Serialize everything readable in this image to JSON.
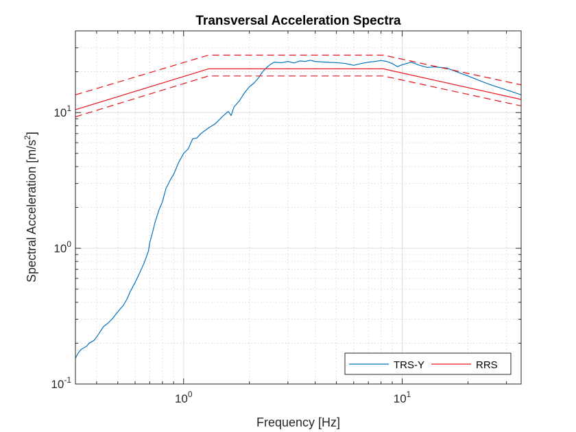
{
  "chart_data": {
    "type": "line",
    "title": "Transversal Acceleration Spectra",
    "xlabel": "Frequency [Hz]",
    "ylabel": "Spectral Acceleration [m/s",
    "ylabel_sup": "2",
    "ylabel_end": "]",
    "x_scale": "log",
    "y_scale": "log",
    "xlim": [
      0.32,
      35
    ],
    "ylim": [
      0.1,
      40
    ],
    "grid": "on",
    "minor_grid": "on",
    "x_ticks": [
      {
        "value": 1,
        "base": "10",
        "exp": "0"
      },
      {
        "value": 10,
        "base": "10",
        "exp": "1"
      }
    ],
    "y_ticks": [
      {
        "value": 0.1,
        "base": "10",
        "exp": "-1"
      },
      {
        "value": 1,
        "base": "10",
        "exp": "0"
      },
      {
        "value": 10,
        "base": "10",
        "exp": "1"
      }
    ],
    "legend_position": "bottom-right",
    "colors": {
      "trs": "#0072BD",
      "rrs": "#E8141C"
    },
    "series": [
      {
        "name": "TRS-Y",
        "style": "solid",
        "color": "#0072BD",
        "x": [
          0.32,
          0.33,
          0.34,
          0.36,
          0.37,
          0.38,
          0.39,
          0.41,
          0.43,
          0.45,
          0.47,
          0.5,
          0.53,
          0.55,
          0.57,
          0.6,
          0.63,
          0.66,
          0.69,
          0.7,
          0.72,
          0.74,
          0.77,
          0.8,
          0.83,
          0.87,
          0.9,
          0.95,
          1.0,
          1.05,
          1.1,
          1.15,
          1.2,
          1.3,
          1.4,
          1.5,
          1.6,
          1.65,
          1.7,
          1.8,
          1.9,
          2.0,
          2.1,
          2.2,
          2.3,
          2.4,
          2.5,
          2.6,
          2.8,
          3.0,
          3.2,
          3.4,
          3.6,
          3.8,
          4.0,
          4.5,
          5.0,
          5.5,
          6.0,
          6.5,
          7.0,
          7.5,
          8.0,
          8.5,
          9.0,
          9.5,
          10.0,
          11.0,
          12.0,
          13.0,
          14.0,
          16.0,
          18.0,
          20.0,
          23.0,
          26.0,
          30.0,
          35.0
        ],
        "y": [
          0.155,
          0.17,
          0.18,
          0.19,
          0.2,
          0.205,
          0.21,
          0.235,
          0.265,
          0.28,
          0.3,
          0.34,
          0.38,
          0.42,
          0.48,
          0.56,
          0.66,
          0.78,
          0.95,
          1.1,
          1.3,
          1.55,
          1.9,
          2.2,
          2.75,
          3.2,
          3.5,
          4.3,
          5.0,
          5.4,
          6.4,
          6.5,
          7.0,
          7.7,
          8.3,
          9.3,
          10.2,
          9.5,
          11.0,
          12.2,
          14.0,
          15.5,
          16.5,
          18.0,
          20.0,
          21.5,
          22.7,
          23.5,
          23.3,
          23.8,
          23.2,
          24.0,
          23.8,
          24.3,
          23.8,
          23.5,
          23.3,
          23.0,
          22.3,
          23.0,
          23.5,
          23.8,
          24.2,
          23.8,
          23.0,
          21.8,
          22.5,
          23.5,
          22.3,
          21.5,
          21.7,
          21.3,
          19.8,
          18.6,
          17.0,
          15.8,
          14.7,
          13.5
        ]
      },
      {
        "name": "RRS",
        "style": "solid",
        "color": "#E8141C",
        "x": [
          0.32,
          1.3,
          8.2,
          35.0
        ],
        "y": [
          10.5,
          21.0,
          21.0,
          12.5
        ]
      },
      {
        "style": "dashed",
        "color": "#E8141C",
        "x": [
          0.32,
          1.3,
          8.2,
          35.0
        ],
        "y": [
          13.5,
          26.5,
          26.5,
          16.0
        ]
      },
      {
        "style": "dashed",
        "color": "#E8141C",
        "x": [
          0.32,
          1.3,
          8.2,
          35.0
        ],
        "y": [
          9.3,
          18.6,
          18.6,
          11.2
        ]
      }
    ]
  }
}
